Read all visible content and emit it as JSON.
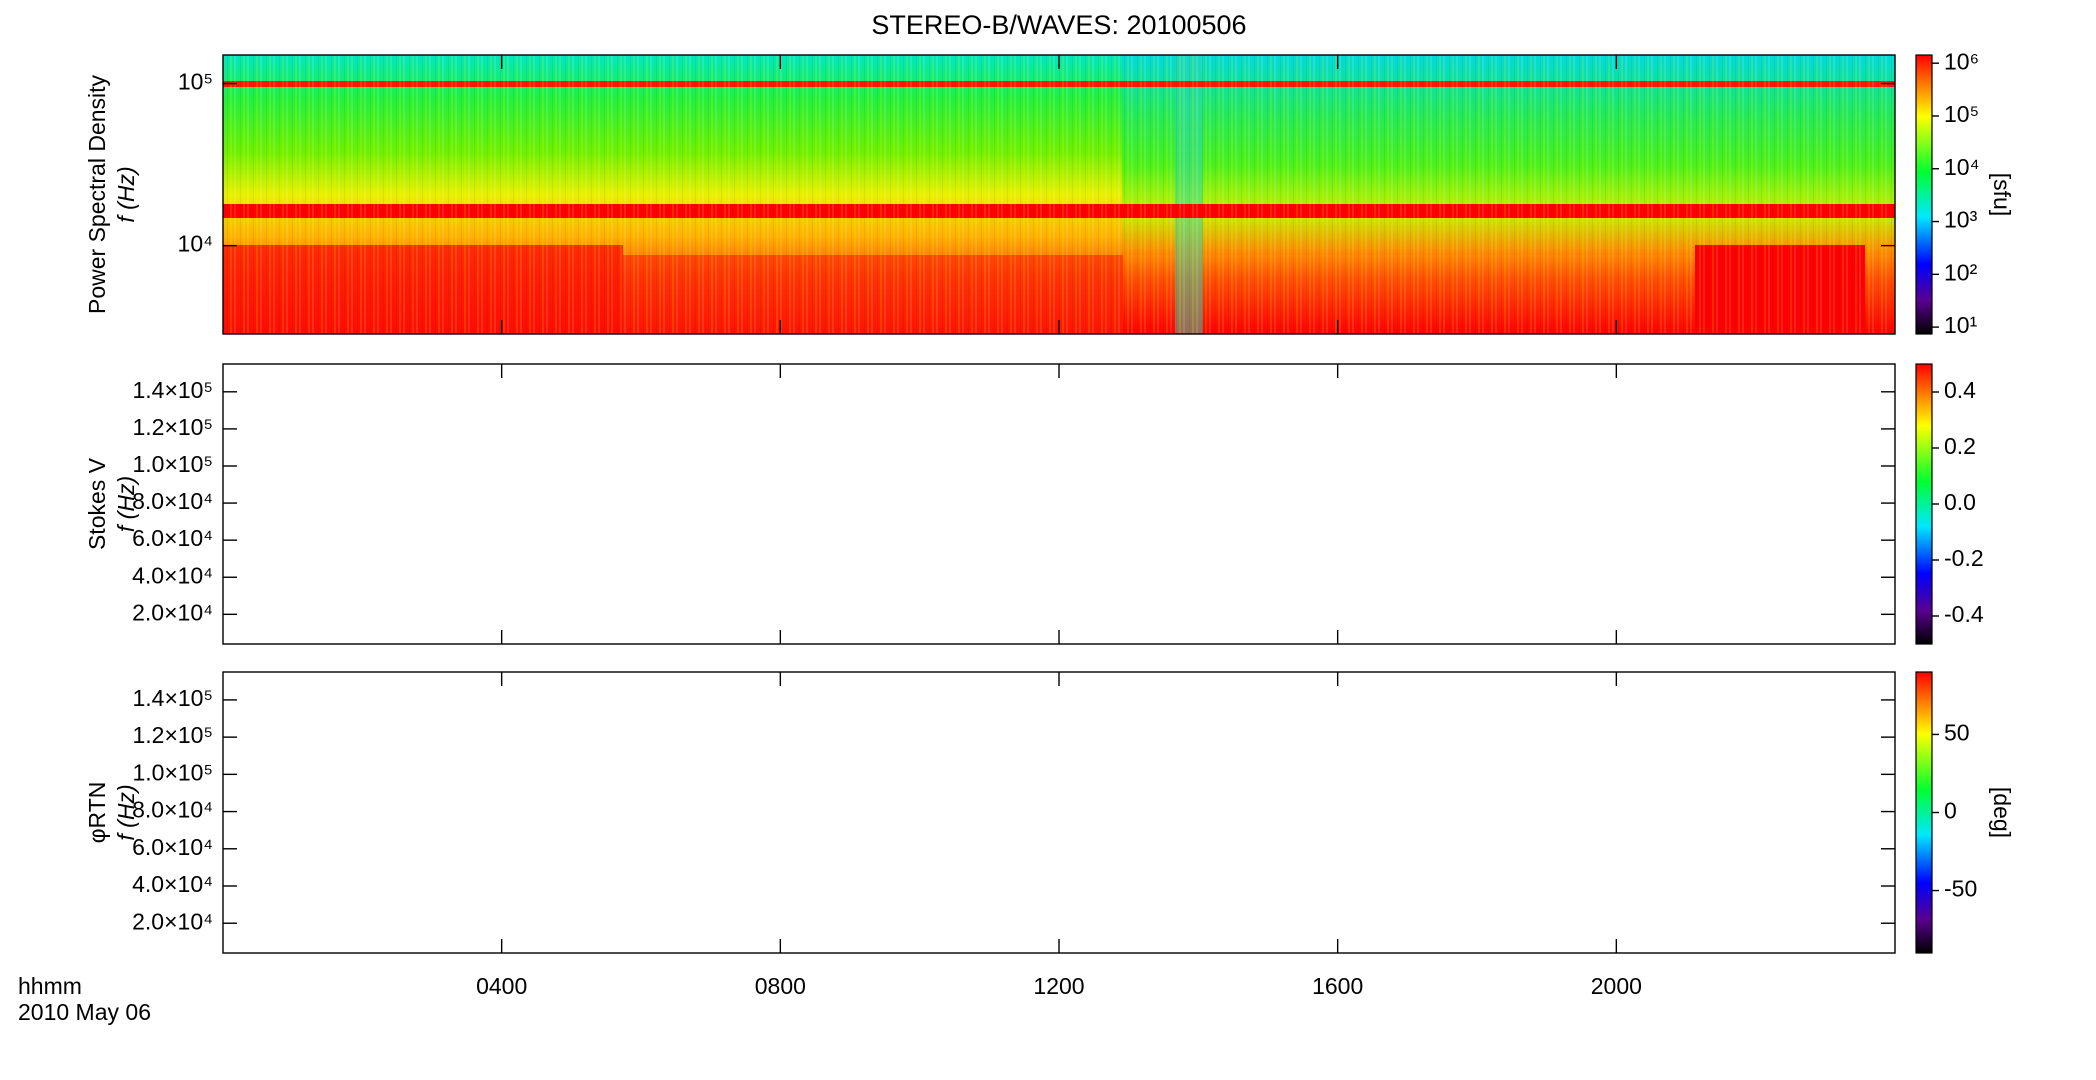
{
  "chart_data": [
    {
      "type": "spectrogram",
      "title": "STEREO-B/WAVES: 20100506",
      "ylabel": [
        "Power Spectral Density",
        "f (Hz)"
      ],
      "yscale": "log",
      "ylim": [
        2850,
        150000
      ],
      "yticks": [
        {
          "value": 100000,
          "label": "10⁵"
        },
        {
          "value": 10000,
          "label": "10⁴"
        }
      ],
      "xlim": [
        0,
        24
      ],
      "xticks": [
        {
          "value": 4,
          "label": "0400"
        },
        {
          "value": 8,
          "label": "0800"
        },
        {
          "value": 12,
          "label": "1200"
        },
        {
          "value": 16,
          "label": "1600"
        },
        {
          "value": 20,
          "label": "2000"
        }
      ],
      "colorbar": {
        "scale": "log",
        "lim": [
          7.4,
          1430000
        ],
        "label": "[sfu]",
        "ticks": [
          {
            "value": 10,
            "label": "10¹"
          },
          {
            "value": 100,
            "label": "10²"
          },
          {
            "value": 1000,
            "label": "10³"
          },
          {
            "value": 10000,
            "label": "10⁴"
          },
          {
            "value": 100000,
            "label": "10⁵"
          },
          {
            "value": 1000000,
            "label": "10⁶"
          }
        ]
      }
    },
    {
      "type": "spectrogram",
      "ylabel": [
        "Stokes V",
        "f (Hz)"
      ],
      "ylim": [
        4000,
        155000
      ],
      "yticks": [
        {
          "value": 20000,
          "label": "2.0×10⁴"
        },
        {
          "value": 40000,
          "label": "4.0×10⁴"
        },
        {
          "value": 60000,
          "label": "6.0×10⁴"
        },
        {
          "value": 80000,
          "label": "8.0×10⁴"
        },
        {
          "value": 100000,
          "label": "1.0×10⁵"
        },
        {
          "value": 120000,
          "label": "1.2×10⁵"
        },
        {
          "value": 140000,
          "label": "1.4×10⁵"
        }
      ],
      "xlim": [
        0,
        24
      ],
      "xticks": [
        {
          "value": 4,
          "label": "0400"
        },
        {
          "value": 8,
          "label": "0800"
        },
        {
          "value": 12,
          "label": "1200"
        },
        {
          "value": 16,
          "label": "1600"
        },
        {
          "value": 20,
          "label": "2000"
        }
      ],
      "colorbar": {
        "lim": [
          -0.5,
          0.5
        ],
        "ticks": [
          -0.4,
          -0.2,
          {
            "value": 0,
            "label": "0.0"
          },
          0.2,
          0.4
        ]
      }
    },
    {
      "type": "spectrogram",
      "ylabel": [
        "φRTN",
        "f (Hz)"
      ],
      "ylim": [
        4000,
        155000
      ],
      "yticks": [
        {
          "value": 20000,
          "label": "2.0×10⁴"
        },
        {
          "value": 40000,
          "label": "4.0×10⁴"
        },
        {
          "value": 60000,
          "label": "6.0×10⁴"
        },
        {
          "value": 80000,
          "label": "8.0×10⁴"
        },
        {
          "value": 100000,
          "label": "1.0×10⁵"
        },
        {
          "value": 120000,
          "label": "1.2×10⁵"
        },
        {
          "value": 140000,
          "label": "1.4×10⁵"
        }
      ],
      "xlim": [
        0,
        24
      ],
      "xticks": [
        {
          "value": 4,
          "label": "0400"
        },
        {
          "value": 8,
          "label": "0800"
        },
        {
          "value": 12,
          "label": "1200"
        },
        {
          "value": 16,
          "label": "1600"
        },
        {
          "value": 20,
          "label": "2000"
        }
      ],
      "colorbar": {
        "lim": [
          -90,
          90
        ],
        "ticks": [
          -50,
          0,
          50
        ],
        "label": "[deg]"
      },
      "xlabel": "hhmm",
      "date": "2010 May 06"
    }
  ]
}
